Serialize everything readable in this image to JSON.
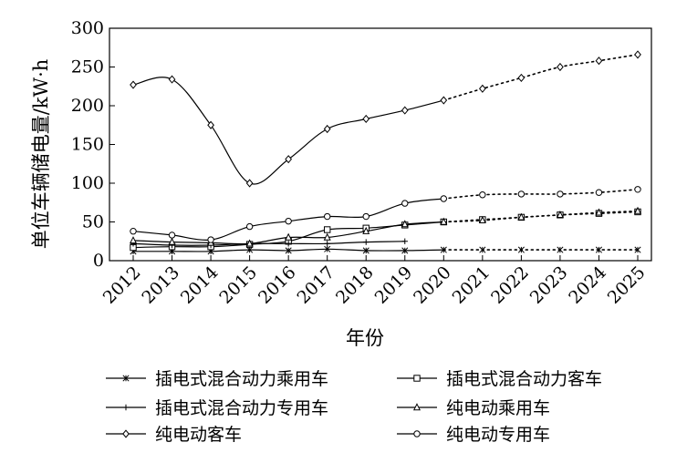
{
  "chart_data": {
    "type": "line",
    "xlabel": "年份",
    "ylabel": "单位车辆储电量/kW·h",
    "ylim": [
      0,
      300
    ],
    "yticks": [
      0,
      50,
      100,
      150,
      200,
      250,
      300
    ],
    "categories": [
      "2012",
      "2013",
      "2014",
      "2015",
      "2016",
      "2017",
      "2018",
      "2019",
      "2020",
      "2021",
      "2022",
      "2023",
      "2024",
      "2025"
    ],
    "grid": false,
    "legend_position": "bottom",
    "forecast_from": "2020",
    "series": [
      {
        "name": "插电式混合动力乘用车",
        "marker": "asterisk",
        "values": [
          12,
          12,
          12,
          14,
          13,
          15,
          13,
          13,
          14,
          14,
          14,
          14,
          14,
          14
        ]
      },
      {
        "name": "插电式混合动力客车",
        "marker": "square",
        "values": [
          17,
          18,
          18,
          21,
          25,
          40,
          42,
          46,
          50,
          53,
          56,
          59,
          61,
          63
        ]
      },
      {
        "name": "插电式混合动力专用车",
        "marker": "plus",
        "values": [
          22,
          20,
          20,
          22,
          22,
          22,
          24,
          25,
          null,
          null,
          null,
          null,
          null,
          null
        ]
      },
      {
        "name": "纯电动乘用车",
        "marker": "triangle",
        "values": [
          26,
          24,
          23,
          22,
          30,
          30,
          38,
          47,
          50,
          52,
          56,
          59,
          62,
          64
        ]
      },
      {
        "name": "纯电动客车",
        "marker": "diamond",
        "values": [
          227,
          234,
          175,
          100,
          131,
          170,
          183,
          194,
          207,
          222,
          236,
          250,
          258,
          266
        ]
      },
      {
        "name": "纯电动专用车",
        "marker": "circle",
        "values": [
          38,
          33,
          27,
          44,
          51,
          57,
          57,
          74,
          80,
          85,
          86,
          86,
          88,
          92
        ]
      }
    ]
  }
}
